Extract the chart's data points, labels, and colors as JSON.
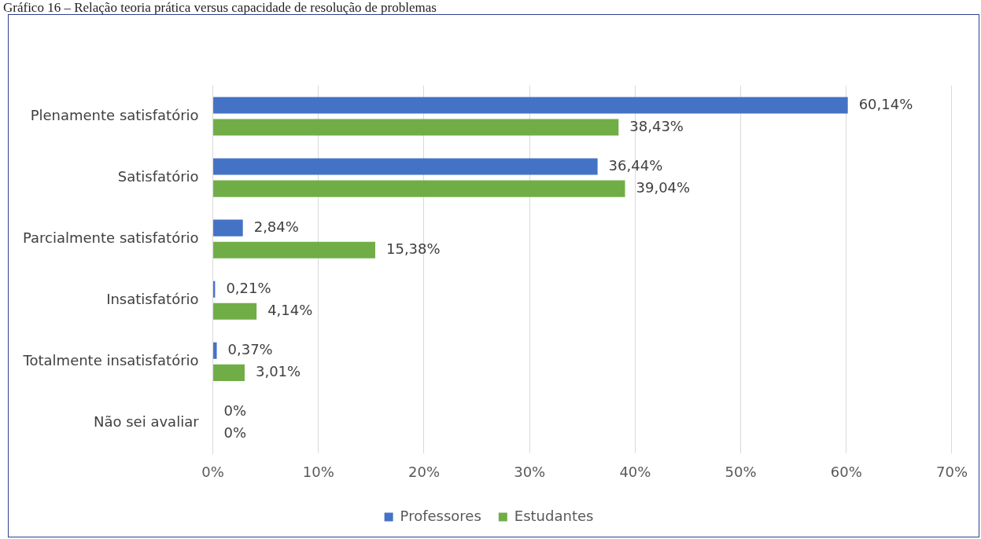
{
  "chart_data": {
    "type": "bar",
    "orientation": "horizontal",
    "title": "Gráfico 16 – Relação teoria prática versus capacidade de resolução de problemas",
    "categories": [
      "Plenamente satisfatório",
      "Satisfatório",
      "Parcialmente satisfatório",
      "Insatisfatório",
      "Totalmente insatisfatório",
      "Não sei avaliar"
    ],
    "series": [
      {
        "name": "Professores",
        "color": "#4472c4",
        "values": [
          60.14,
          36.44,
          2.84,
          0.21,
          0.37,
          0
        ],
        "value_labels": [
          "60,14%",
          "36,44%",
          "2,84%",
          "0,21%",
          "0,37%",
          "0%"
        ]
      },
      {
        "name": "Estudantes",
        "color": "#70ad47",
        "values": [
          38.43,
          39.04,
          15.38,
          4.14,
          3.01,
          0
        ],
        "value_labels": [
          "38,43%",
          "39,04%",
          "15,38%",
          "4,14%",
          "3,01%",
          "0%"
        ]
      }
    ],
    "xlim": [
      0,
      70
    ],
    "xticks": [
      {
        "value": 0,
        "label": "0%"
      },
      {
        "value": 10,
        "label": "10%"
      },
      {
        "value": 20,
        "label": "20%"
      },
      {
        "value": 30,
        "label": "30%"
      },
      {
        "value": 40,
        "label": "40%"
      },
      {
        "value": 50,
        "label": "50%"
      },
      {
        "value": 60,
        "label": "60%"
      },
      {
        "value": 70,
        "label": "70%"
      }
    ],
    "grid": "x",
    "legend": "bottom"
  }
}
